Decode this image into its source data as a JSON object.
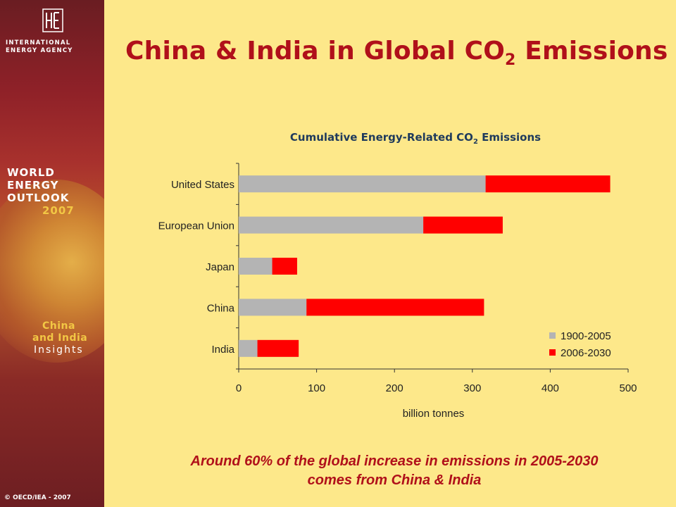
{
  "sidebar": {
    "agency_line1": "INTERNATIONAL",
    "agency_line2": "ENERGY AGENCY",
    "weo_line1": "WORLD",
    "weo_line2": "ENERGY",
    "weo_line3": "OUTLOOK",
    "weo_year": "2007",
    "insight_line1": "China",
    "insight_line2": "and India",
    "insight_line3": "Insights",
    "copyright": "© OECD/IEA - 2007"
  },
  "title": {
    "main": "China & India in Global CO",
    "sub": "2",
    "tail": " Emissions"
  },
  "caption": {
    "line1": "Around 60% of the global increase in emissions in 2005-2030",
    "line2": "comes from China & India"
  },
  "colors": {
    "series_historic": "#b4b4b4",
    "series_future": "#ff0000",
    "title_red": "#b0101a",
    "chart_title_blue": "#1f3a5c"
  },
  "chart_data": {
    "type": "bar",
    "orientation": "horizontal",
    "stacked": true,
    "title_main": "Cumulative Energy-Related CO",
    "title_sub": "2",
    "title_tail": " Emissions",
    "categories": [
      "United States",
      "European Union",
      "Japan",
      "China",
      "India"
    ],
    "series": [
      {
        "name": "1900-2005",
        "values": [
          317,
          237,
          43,
          87,
          24
        ]
      },
      {
        "name": "2006-2030",
        "values": [
          160,
          102,
          32,
          228,
          53
        ]
      }
    ],
    "xlabel": "billion tonnes",
    "xlim": [
      0,
      500
    ],
    "xticks": [
      "0",
      "100",
      "200",
      "300",
      "400",
      "500"
    ],
    "grid": false,
    "legend_position": "bottom-right"
  }
}
